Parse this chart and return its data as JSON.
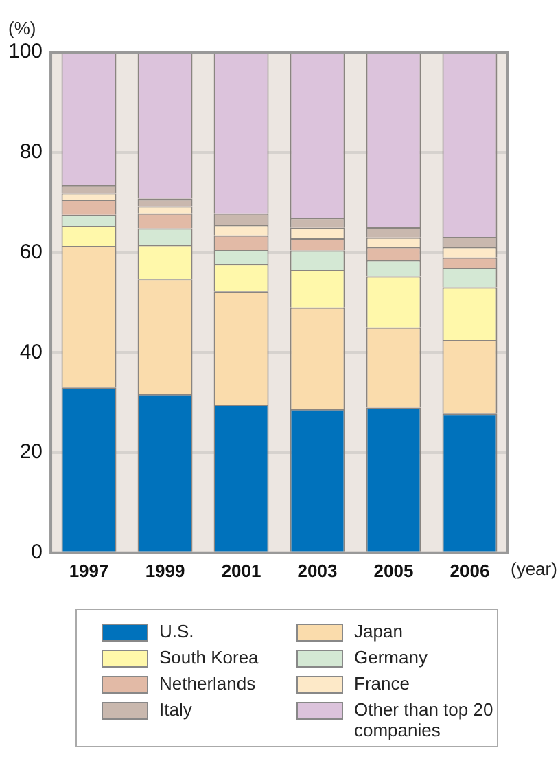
{
  "chart_data": {
    "type": "bar",
    "stacked": true,
    "ylabel": "(%)",
    "xlabel": "(year)",
    "categories": [
      "1997",
      "1999",
      "2001",
      "2003",
      "2005",
      "2006"
    ],
    "series": [
      {
        "name": "U.S.",
        "color": "#0072bc",
        "values": [
          33,
          31.7,
          29.6,
          28.7,
          29,
          27.8
        ]
      },
      {
        "name": "Japan",
        "color": "#fadcac",
        "values": [
          28.3,
          23,
          22.6,
          20.3,
          16,
          14.7
        ]
      },
      {
        "name": "South Korea",
        "color": "#fff8aa",
        "values": [
          4,
          6.8,
          5.5,
          7.5,
          10.2,
          10.5
        ]
      },
      {
        "name": "Germany",
        "color": "#d4e8d4",
        "values": [
          2.2,
          3.3,
          2.8,
          3.9,
          3.3,
          3.9
        ]
      },
      {
        "name": "Netherlands",
        "color": "#e2baa6",
        "values": [
          3,
          3,
          2.9,
          2.4,
          2.6,
          2.1
        ]
      },
      {
        "name": "France",
        "color": "#fde9c8",
        "values": [
          1.3,
          1.4,
          2.1,
          2.1,
          1.9,
          2.1
        ]
      },
      {
        "name": "Italy",
        "color": "#c9b8ae",
        "values": [
          1.6,
          1.5,
          2.3,
          2,
          2,
          2
        ]
      },
      {
        "name": "Other than top 20 companies",
        "color": "#dcc3dc",
        "values": [
          26.6,
          29.3,
          32.2,
          33.1,
          35,
          36.9
        ]
      }
    ],
    "ylim": [
      0,
      100
    ],
    "yticks": [
      0,
      20,
      40,
      60,
      80,
      100
    ],
    "grid": "y",
    "legend": "bottom"
  }
}
